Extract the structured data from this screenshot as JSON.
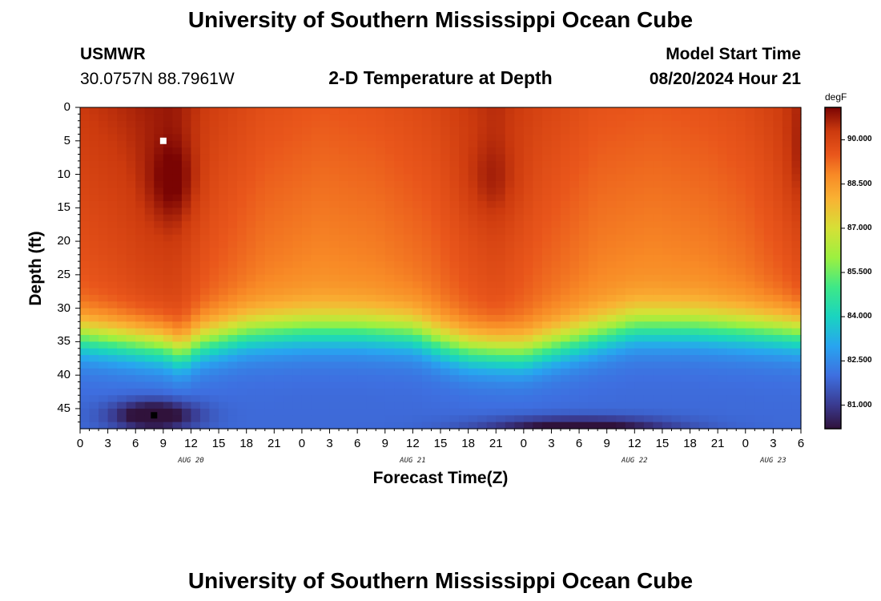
{
  "page": {
    "top_title": "University of Southern Mississippi Ocean Cube",
    "bottom_title": "University of Southern Mississippi Ocean Cube",
    "station": "USMWR",
    "coords": "30.0757N  88.7961W",
    "plot_title": "2-D Temperature at Depth",
    "model_start_label": "Model Start Time",
    "model_start_value": "08/20/2024 Hour 21"
  },
  "chart_data": {
    "type": "heatmap",
    "title": "2-D Temperature at Depth",
    "xlabel": "Forecast Time(Z)",
    "ylabel": "Depth (ft)",
    "x_unit": "hours (Z) from 08/20 00Z",
    "xlim": [
      0,
      78
    ],
    "ylim": [
      0,
      48
    ],
    "x_ticks": [
      {
        "hour": 0,
        "label": "0"
      },
      {
        "hour": 3,
        "label": "3"
      },
      {
        "hour": 6,
        "label": "6"
      },
      {
        "hour": 9,
        "label": "9"
      },
      {
        "hour": 12,
        "label": "12"
      },
      {
        "hour": 15,
        "label": "15"
      },
      {
        "hour": 18,
        "label": "18"
      },
      {
        "hour": 21,
        "label": "21"
      },
      {
        "hour": 24,
        "label": "0"
      },
      {
        "hour": 27,
        "label": "3"
      },
      {
        "hour": 30,
        "label": "6"
      },
      {
        "hour": 33,
        "label": "9"
      },
      {
        "hour": 36,
        "label": "12"
      },
      {
        "hour": 39,
        "label": "15"
      },
      {
        "hour": 42,
        "label": "18"
      },
      {
        "hour": 45,
        "label": "21"
      },
      {
        "hour": 48,
        "label": "0"
      },
      {
        "hour": 51,
        "label": "3"
      },
      {
        "hour": 54,
        "label": "6"
      },
      {
        "hour": 57,
        "label": "9"
      },
      {
        "hour": 60,
        "label": "12"
      },
      {
        "hour": 63,
        "label": "15"
      },
      {
        "hour": 66,
        "label": "18"
      },
      {
        "hour": 69,
        "label": "21"
      },
      {
        "hour": 72,
        "label": "0"
      },
      {
        "hour": 75,
        "label": "3"
      },
      {
        "hour": 78,
        "label": "6"
      }
    ],
    "y_ticks": [
      0,
      5,
      10,
      15,
      20,
      25,
      30,
      35,
      40,
      45
    ],
    "day_labels": [
      {
        "hour": 12,
        "label": "AUG 20"
      },
      {
        "hour": 36,
        "label": "AUG 21"
      },
      {
        "hour": 60,
        "label": "AUG 22"
      },
      {
        "hour": 75,
        "label": "AUG 23"
      }
    ],
    "colorbar": {
      "unit": "degF",
      "min": 80.2,
      "max": 91.1,
      "ticks": [
        {
          "value": 81.0,
          "label": "81.000"
        },
        {
          "value": 82.5,
          "label": "82.500"
        },
        {
          "value": 84.0,
          "label": "84.000"
        },
        {
          "value": 85.5,
          "label": "85.500"
        },
        {
          "value": 87.0,
          "label": "87.000"
        },
        {
          "value": 88.5,
          "label": "88.500"
        },
        {
          "value": 90.0,
          "label": "90.000"
        }
      ],
      "color_stops": [
        {
          "value": 80.2,
          "color": "#30123b"
        },
        {
          "value": 81.0,
          "color": "#3a3a8f"
        },
        {
          "value": 82.0,
          "color": "#3e6fe0"
        },
        {
          "value": 83.0,
          "color": "#28a4f0"
        },
        {
          "value": 84.0,
          "color": "#1ad4c0"
        },
        {
          "value": 85.0,
          "color": "#3ee887"
        },
        {
          "value": 86.0,
          "color": "#9cf040"
        },
        {
          "value": 87.0,
          "color": "#d6e036"
        },
        {
          "value": 88.0,
          "color": "#f9b233"
        },
        {
          "value": 88.8,
          "color": "#f88a26"
        },
        {
          "value": 89.5,
          "color": "#e9561b"
        },
        {
          "value": 90.3,
          "color": "#cc3a0e"
        },
        {
          "value": 91.1,
          "color": "#7a0403"
        }
      ]
    },
    "thermocline_depth_ft": [
      {
        "hour": 0,
        "depth": 31.0
      },
      {
        "hour": 6,
        "depth": 32.0
      },
      {
        "hour": 9,
        "depth": 32.5
      },
      {
        "hour": 11,
        "depth": 33.5
      },
      {
        "hour": 13,
        "depth": 32.0
      },
      {
        "hour": 18,
        "depth": 30.5
      },
      {
        "hour": 24,
        "depth": 30.0
      },
      {
        "hour": 30,
        "depth": 30.0
      },
      {
        "hour": 36,
        "depth": 30.5
      },
      {
        "hour": 39,
        "depth": 32.0
      },
      {
        "hour": 42,
        "depth": 33.0
      },
      {
        "hour": 48,
        "depth": 33.5
      },
      {
        "hour": 54,
        "depth": 31.5
      },
      {
        "hour": 60,
        "depth": 29.5
      },
      {
        "hour": 66,
        "depth": 29.5
      },
      {
        "hour": 72,
        "depth": 30.0
      },
      {
        "hour": 78,
        "depth": 30.5
      }
    ],
    "surface_temp_degF": [
      {
        "hour": 0,
        "value": 90.3
      },
      {
        "hour": 4,
        "value": 90.5
      },
      {
        "hour": 7,
        "value": 90.7
      },
      {
        "hour": 10,
        "value": 90.8
      },
      {
        "hour": 14,
        "value": 90.2
      },
      {
        "hour": 20,
        "value": 89.7
      },
      {
        "hour": 26,
        "value": 89.5
      },
      {
        "hour": 32,
        "value": 89.6
      },
      {
        "hour": 38,
        "value": 89.9
      },
      {
        "hour": 42,
        "value": 90.3
      },
      {
        "hour": 45,
        "value": 90.5
      },
      {
        "hour": 50,
        "value": 90.0
      },
      {
        "hour": 56,
        "value": 89.6
      },
      {
        "hour": 62,
        "value": 89.5
      },
      {
        "hour": 68,
        "value": 89.6
      },
      {
        "hour": 72,
        "value": 89.8
      },
      {
        "hour": 76,
        "value": 90.2
      },
      {
        "hour": 78,
        "value": 90.5
      }
    ],
    "warm_cores": [
      {
        "hour": 10,
        "depth": 11,
        "extra": 0.8,
        "sx": 2.6,
        "sy": 6
      },
      {
        "hour": 44.5,
        "depth": 11,
        "extra": 0.5,
        "sx": 3.0,
        "sy": 6
      },
      {
        "hour": 78,
        "depth": 8,
        "extra": 0.4,
        "sx": 2.0,
        "sy": 8
      }
    ],
    "cold_cores": [
      {
        "hour": 8,
        "depth": 46,
        "amount": 2.4,
        "sx": 4.5,
        "sy": 2.2
      },
      {
        "hour": 54,
        "depth": 48,
        "amount": 2.2,
        "sx": 10,
        "sy": 1.6
      }
    ],
    "markers": [
      {
        "hour": 9,
        "depth": 5,
        "color": "#ffffff",
        "name": "max-temp-marker"
      },
      {
        "hour": 8,
        "depth": 46,
        "color": "#000000",
        "name": "min-temp-marker"
      }
    ]
  }
}
